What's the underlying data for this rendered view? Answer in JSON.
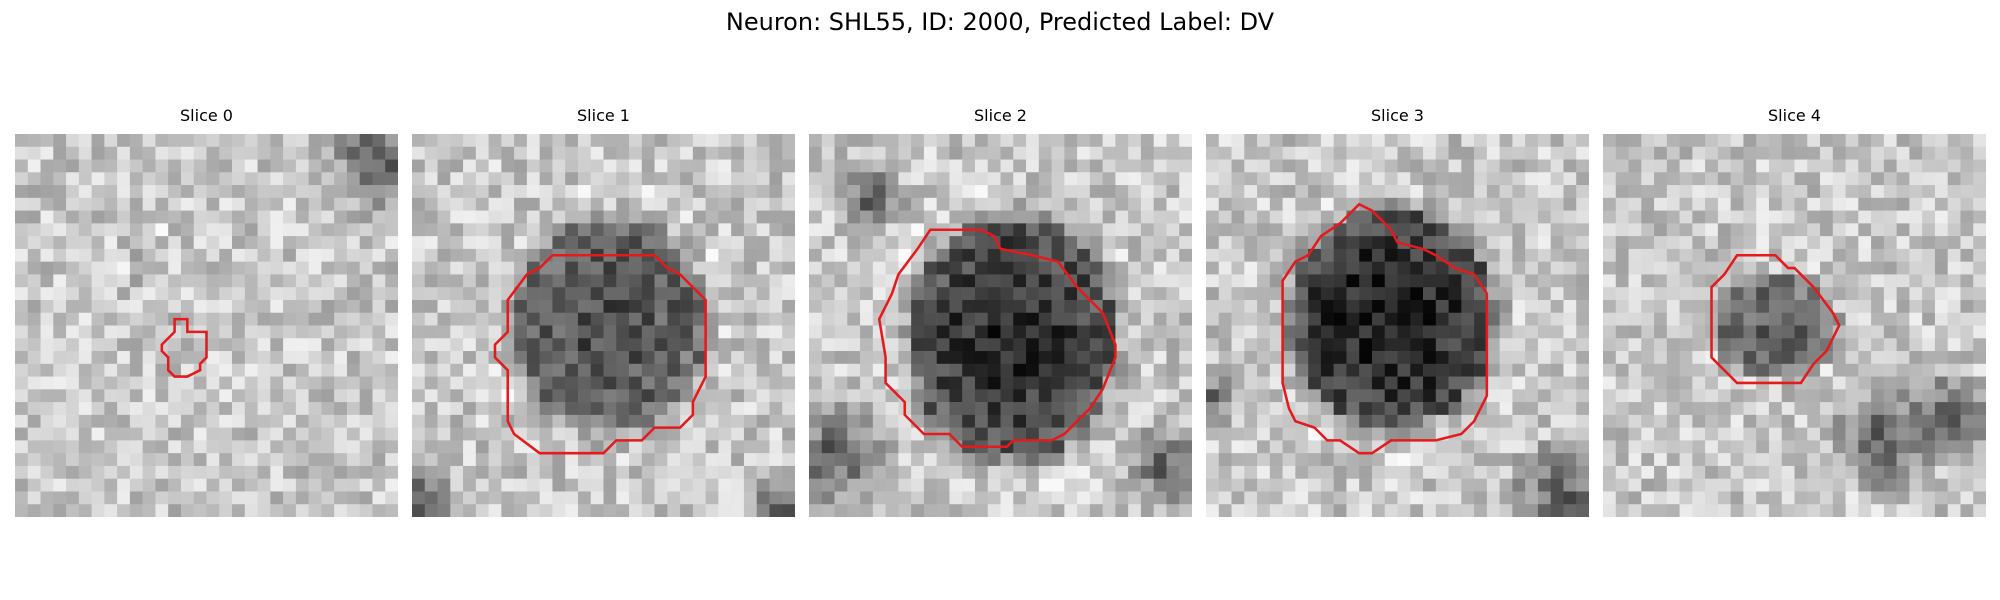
{
  "figure": {
    "title": "Neuron: SHL55, ID: 2000, Predicted Label: DV"
  },
  "panels": [
    {
      "title": "Slice 0",
      "seed": 11,
      "blob_darkness": 0.05,
      "contour_color": "#e41a1c"
    },
    {
      "title": "Slice 1",
      "seed": 23,
      "blob_darkness": 0.48,
      "contour_color": "#e41a1c"
    },
    {
      "title": "Slice 2",
      "seed": 37,
      "blob_darkness": 0.62,
      "contour_color": "#e41a1c"
    },
    {
      "title": "Slice 3",
      "seed": 41,
      "blob_darkness": 0.68,
      "contour_color": "#e41a1c"
    },
    {
      "title": "Slice 4",
      "seed": 53,
      "blob_darkness": 0.4,
      "contour_color": "#e41a1c"
    }
  ],
  "colors": {
    "background": "#ffffff",
    "contour": "#e41a1c"
  }
}
